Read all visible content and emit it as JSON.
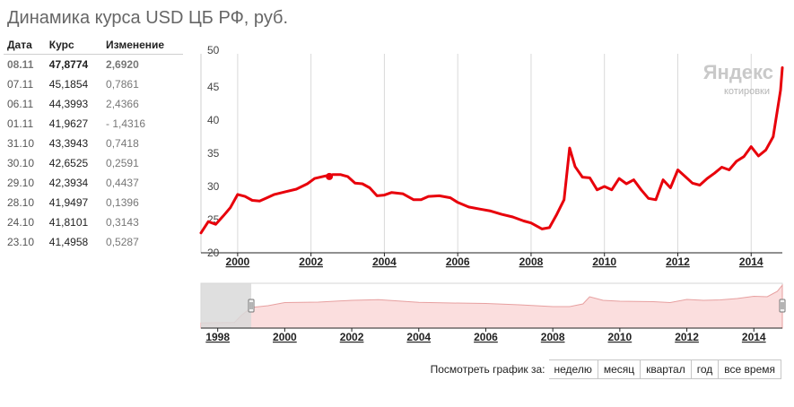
{
  "title": "Динамика курса USD ЦБ РФ, руб.",
  "table": {
    "headers": [
      "Дата",
      "Курс",
      "Изменение"
    ],
    "rows": [
      {
        "date": "08.11",
        "rate": "47,8774",
        "change": "2,6920"
      },
      {
        "date": "07.11",
        "rate": "45,1854",
        "change": "0,7861"
      },
      {
        "date": "06.11",
        "rate": "44,3993",
        "change": "2,4366"
      },
      {
        "date": "01.11",
        "rate": "41,9627",
        "change": "- 1,4316"
      },
      {
        "date": "31.10",
        "rate": "43,3943",
        "change": "0,7418"
      },
      {
        "date": "30.10",
        "rate": "42,6525",
        "change": "0,2591"
      },
      {
        "date": "29.10",
        "rate": "42,3934",
        "change": "0,4437"
      },
      {
        "date": "28.10",
        "rate": "41,9497",
        "change": "0,1396"
      },
      {
        "date": "24.10",
        "rate": "41,8101",
        "change": "0,3143"
      },
      {
        "date": "23.10",
        "rate": "41,4958",
        "change": "0,5287"
      }
    ]
  },
  "watermark": {
    "brand": "Яндекс",
    "sub": "котировки"
  },
  "colors": {
    "line": "#e8000b",
    "area": "#fbdede",
    "area_stroke": "#e7a0a0",
    "grid": "#d9d9d9"
  },
  "period_selector": {
    "label": "Посмотреть график за:",
    "buttons": [
      "неделю",
      "месяц",
      "квартал",
      "год",
      "все время"
    ]
  },
  "chart_data": [
    {
      "type": "line",
      "title": "",
      "xlabel": "",
      "ylabel": "",
      "xlim": [
        1999.0,
        2014.85
      ],
      "ylim": [
        20,
        50
      ],
      "y_ticks": [
        20,
        25,
        30,
        35,
        40,
        45,
        50
      ],
      "x_ticks": [
        "2000",
        "2002",
        "2004",
        "2006",
        "2008",
        "2010",
        "2012",
        "2014"
      ],
      "grid": "vertical",
      "series": [
        {
          "x": [
            1999.0,
            1999.2,
            1999.4,
            1999.6,
            1999.8,
            2000.0,
            2000.2,
            2000.4,
            2000.6,
            2000.8,
            2001.0,
            2001.3,
            2001.6,
            2001.9,
            2002.1,
            2002.4,
            2002.6,
            2002.8,
            2003.0,
            2003.2,
            2003.4,
            2003.6,
            2003.8,
            2004.0,
            2004.2,
            2004.5,
            2004.8,
            2005.0,
            2005.2,
            2005.5,
            2005.8,
            2006.0,
            2006.3,
            2006.6,
            2006.9,
            2007.2,
            2007.5,
            2007.8,
            2008.0,
            2008.3,
            2008.5,
            2008.7,
            2008.9,
            2009.05,
            2009.2,
            2009.4,
            2009.6,
            2009.8,
            2010.0,
            2010.2,
            2010.4,
            2010.6,
            2010.8,
            2011.0,
            2011.2,
            2011.4,
            2011.6,
            2011.8,
            2012.0,
            2012.2,
            2012.4,
            2012.6,
            2012.8,
            2013.0,
            2013.2,
            2013.4,
            2013.6,
            2013.8,
            2014.0,
            2014.2,
            2014.4,
            2014.6,
            2014.7,
            2014.8,
            2014.85
          ],
          "y": [
            23.0,
            24.7,
            24.3,
            25.5,
            26.8,
            28.8,
            28.5,
            27.9,
            27.8,
            28.3,
            28.8,
            29.2,
            29.6,
            30.4,
            31.2,
            31.6,
            31.8,
            31.8,
            31.5,
            30.5,
            30.4,
            29.8,
            28.6,
            28.7,
            29.1,
            28.9,
            28.0,
            28.0,
            28.5,
            28.6,
            28.3,
            27.6,
            26.9,
            26.6,
            26.3,
            25.8,
            25.4,
            24.8,
            24.5,
            23.6,
            23.8,
            25.8,
            28.0,
            35.8,
            33.0,
            31.4,
            31.3,
            29.5,
            30.0,
            29.5,
            31.2,
            30.4,
            31.0,
            29.5,
            28.2,
            28.0,
            31.0,
            29.8,
            32.5,
            31.5,
            30.5,
            30.2,
            31.2,
            32.0,
            32.9,
            32.5,
            33.8,
            34.5,
            36.0,
            34.6,
            35.5,
            37.5,
            41.0,
            44.5,
            47.9
          ]
        }
      ],
      "annotations": [
        {
          "x": 2002.5,
          "y": 31.5,
          "label": ""
        }
      ]
    },
    {
      "type": "area",
      "title": "",
      "xlim": [
        1997.5,
        2014.85
      ],
      "x_ticks": [
        "1998",
        "2000",
        "2002",
        "2004",
        "2006",
        "2008",
        "2010",
        "2012",
        "2014"
      ],
      "selection": [
        1997.5,
        1999.0
      ],
      "series": [
        {
          "x": [
            1997.5,
            1998.0,
            1998.5,
            1998.7,
            1999.0,
            1999.5,
            2000.0,
            2001.0,
            2002.0,
            2002.8,
            2003.5,
            2004.0,
            2005.0,
            2006.0,
            2007.0,
            2008.0,
            2008.5,
            2008.9,
            2009.1,
            2009.5,
            2010.0,
            2011.0,
            2011.5,
            2012.0,
            2012.5,
            2013.0,
            2013.5,
            2014.0,
            2014.4,
            2014.7,
            2014.85
          ],
          "y": [
            5.8,
            6.0,
            6.3,
            14.0,
            23.0,
            25.0,
            28.5,
            29.0,
            31.0,
            31.8,
            30.0,
            28.8,
            28.0,
            27.5,
            26.0,
            24.0,
            24.0,
            27.0,
            35.0,
            31.0,
            30.0,
            29.5,
            28.5,
            32.0,
            31.0,
            31.5,
            33.0,
            35.5,
            35.0,
            41.0,
            47.9
          ]
        }
      ]
    }
  ]
}
